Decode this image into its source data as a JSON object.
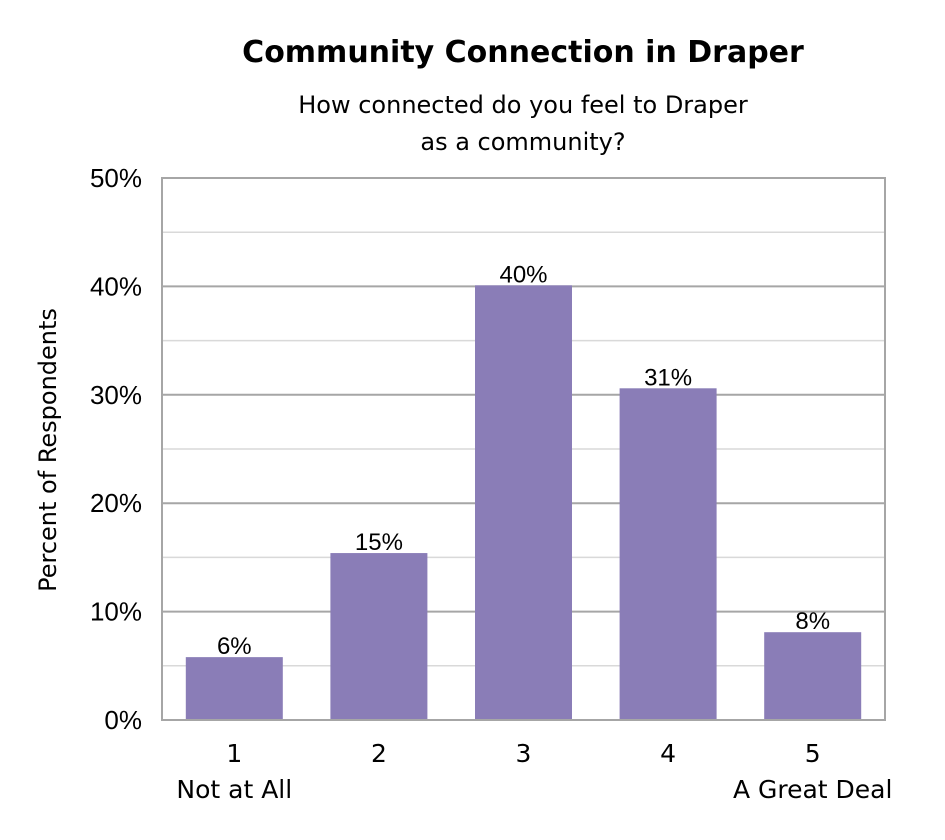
{
  "chart_data": {
    "type": "bar",
    "title": "Community Connection in Draper",
    "subtitle_lines": [
      "How connected do you feel to Draper",
      "as a community?"
    ],
    "ylabel": "Percent of Respondents",
    "xlabel": "",
    "categories": [
      "1",
      "2",
      "3",
      "4",
      "5"
    ],
    "category_sublabels": [
      "Not at All",
      "",
      "",
      "",
      "A Great Deal"
    ],
    "values": [
      6,
      15,
      40,
      31,
      8
    ],
    "value_labels": [
      "6%",
      "15%",
      "40%",
      "31%",
      "8%"
    ],
    "bar_values_precise": [
      5.8,
      15.4,
      40.1,
      30.6,
      8.1
    ],
    "ylim": [
      0,
      50
    ],
    "yticks": [
      0,
      10,
      20,
      30,
      40,
      50
    ],
    "ytick_labels": [
      "0%",
      "10%",
      "20%",
      "30%",
      "40%",
      "50%"
    ],
    "grid": true,
    "minor_grid": true,
    "legend": false,
    "colors": {
      "bar": "#8A7DB7",
      "grid_major": "#a6a6a6",
      "grid_minor": "#d9d9d9",
      "axis": "#a6a6a6"
    }
  }
}
